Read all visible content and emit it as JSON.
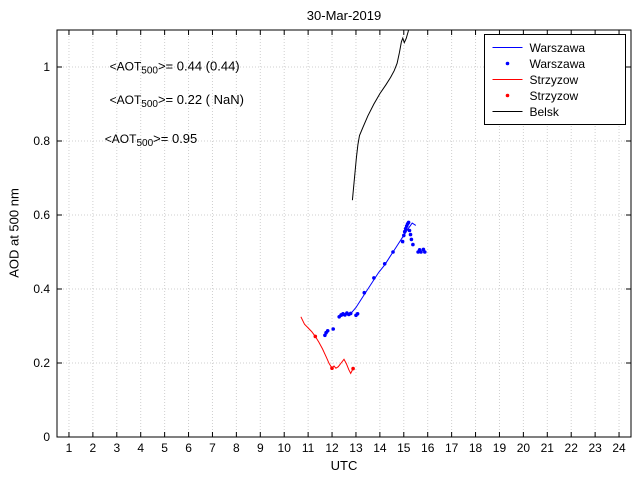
{
  "figure": {
    "background": "#ffffff"
  },
  "chart_data": {
    "type": "line",
    "title": "30-Mar-2019",
    "xlabel": "UTC",
    "ylabel": "AOD at 500 nm",
    "xlim": [
      0.5,
      24.5
    ],
    "ylim": [
      0,
      1.1
    ],
    "xticks": [
      1,
      2,
      3,
      4,
      5,
      6,
      7,
      8,
      9,
      10,
      11,
      12,
      13,
      14,
      15,
      16,
      17,
      18,
      19,
      20,
      21,
      22,
      23,
      24
    ],
    "xtick_labels": [
      "1",
      "2",
      "3",
      "4",
      "5",
      "6",
      "7",
      "8",
      "9",
      "10",
      "11",
      "12",
      "13",
      "14",
      "15",
      "16",
      "17",
      "18",
      "19",
      "20",
      "21",
      "22",
      "23",
      "24"
    ],
    "yticks": [
      0,
      0.2,
      0.4,
      0.6,
      0.8,
      1
    ],
    "ytick_labels": [
      "0",
      "0.2",
      "0.4",
      "0.6",
      "0.8",
      "1"
    ],
    "grid": true,
    "legend_position": "top-right",
    "series": [
      {
        "name": "Warszawa",
        "type": "line",
        "color": "#0000ff",
        "points": [
          [
            12.35,
            0.325
          ],
          [
            12.55,
            0.33
          ],
          [
            12.8,
            0.335
          ],
          [
            13.0,
            0.35
          ],
          [
            13.2,
            0.37
          ],
          [
            13.45,
            0.395
          ],
          [
            13.7,
            0.42
          ],
          [
            13.95,
            0.445
          ],
          [
            14.2,
            0.465
          ],
          [
            14.45,
            0.49
          ],
          [
            14.7,
            0.515
          ],
          [
            14.95,
            0.54
          ],
          [
            15.15,
            0.56
          ],
          [
            15.35,
            0.578
          ],
          [
            15.5,
            0.572
          ]
        ]
      },
      {
        "name": "Warszawa",
        "type": "scatter",
        "color": "#0000ff",
        "points": [
          [
            11.7,
            0.275
          ],
          [
            11.75,
            0.282
          ],
          [
            11.82,
            0.287
          ],
          [
            12.05,
            0.292
          ],
          [
            12.3,
            0.325
          ],
          [
            12.38,
            0.33
          ],
          [
            12.46,
            0.333
          ],
          [
            12.54,
            0.33
          ],
          [
            12.62,
            0.335
          ],
          [
            12.7,
            0.331
          ],
          [
            12.78,
            0.334
          ],
          [
            13.0,
            0.329
          ],
          [
            13.07,
            0.333
          ],
          [
            13.35,
            0.39
          ],
          [
            13.75,
            0.43
          ],
          [
            14.2,
            0.468
          ],
          [
            14.55,
            0.5
          ],
          [
            14.95,
            0.528
          ],
          [
            15.0,
            0.545
          ],
          [
            15.04,
            0.555
          ],
          [
            15.08,
            0.563
          ],
          [
            15.12,
            0.57
          ],
          [
            15.16,
            0.576
          ],
          [
            15.2,
            0.58
          ],
          [
            15.24,
            0.558
          ],
          [
            15.28,
            0.547
          ],
          [
            15.32,
            0.534
          ],
          [
            15.38,
            0.52
          ],
          [
            15.6,
            0.5
          ],
          [
            15.66,
            0.506
          ],
          [
            15.72,
            0.5
          ],
          [
            15.82,
            0.507
          ],
          [
            15.88,
            0.5
          ]
        ]
      },
      {
        "name": "Strzyzow",
        "type": "line",
        "color": "#ff0000",
        "points": [
          [
            10.7,
            0.325
          ],
          [
            10.85,
            0.305
          ],
          [
            11.0,
            0.295
          ],
          [
            11.15,
            0.285
          ],
          [
            11.3,
            0.272
          ],
          [
            11.45,
            0.256
          ],
          [
            11.6,
            0.238
          ],
          [
            11.75,
            0.217
          ],
          [
            11.88,
            0.198
          ],
          [
            12.0,
            0.186
          ],
          [
            12.08,
            0.192
          ],
          [
            12.16,
            0.186
          ],
          [
            12.26,
            0.19
          ],
          [
            12.38,
            0.2
          ],
          [
            12.5,
            0.21
          ],
          [
            12.6,
            0.198
          ],
          [
            12.7,
            0.182
          ],
          [
            12.78,
            0.172
          ],
          [
            12.88,
            0.185
          ]
        ]
      },
      {
        "name": "Strzyzow",
        "type": "scatter",
        "color": "#ff0000",
        "points": [
          [
            11.3,
            0.272
          ],
          [
            12.0,
            0.186
          ],
          [
            12.88,
            0.185
          ]
        ]
      },
      {
        "name": "Belsk",
        "type": "line",
        "color": "#000000",
        "points": [
          [
            12.85,
            0.64
          ],
          [
            12.9,
            0.675
          ],
          [
            12.96,
            0.715
          ],
          [
            13.02,
            0.755
          ],
          [
            13.08,
            0.79
          ],
          [
            13.15,
            0.815
          ],
          [
            13.3,
            0.838
          ],
          [
            13.5,
            0.868
          ],
          [
            13.75,
            0.9
          ],
          [
            14.0,
            0.928
          ],
          [
            14.25,
            0.952
          ],
          [
            14.45,
            0.972
          ],
          [
            14.6,
            0.99
          ],
          [
            14.72,
            1.01
          ],
          [
            14.82,
            1.04
          ],
          [
            14.9,
            1.068
          ],
          [
            14.96,
            1.078
          ],
          [
            15.02,
            1.066
          ],
          [
            15.1,
            1.077
          ],
          [
            15.18,
            1.095
          ],
          [
            15.28,
            1.125
          ]
        ]
      }
    ],
    "annotations": [
      {
        "text_prefix": "<AOT",
        "sub": "500",
        "text_suffix": ">= 0.44 (0.44)",
        "color": "#0000ff",
        "x": 2.7,
        "y": 0.99
      },
      {
        "text_prefix": "<AOT",
        "sub": "500",
        "text_suffix": ">= 0.22 ( NaN)",
        "color": "#ff0000",
        "x": 2.7,
        "y": 0.9
      },
      {
        "text_prefix": "<AOT",
        "sub": "500",
        "text_suffix": ">= 0.95",
        "color": "#000000",
        "x": 2.5,
        "y": 0.795
      }
    ]
  }
}
